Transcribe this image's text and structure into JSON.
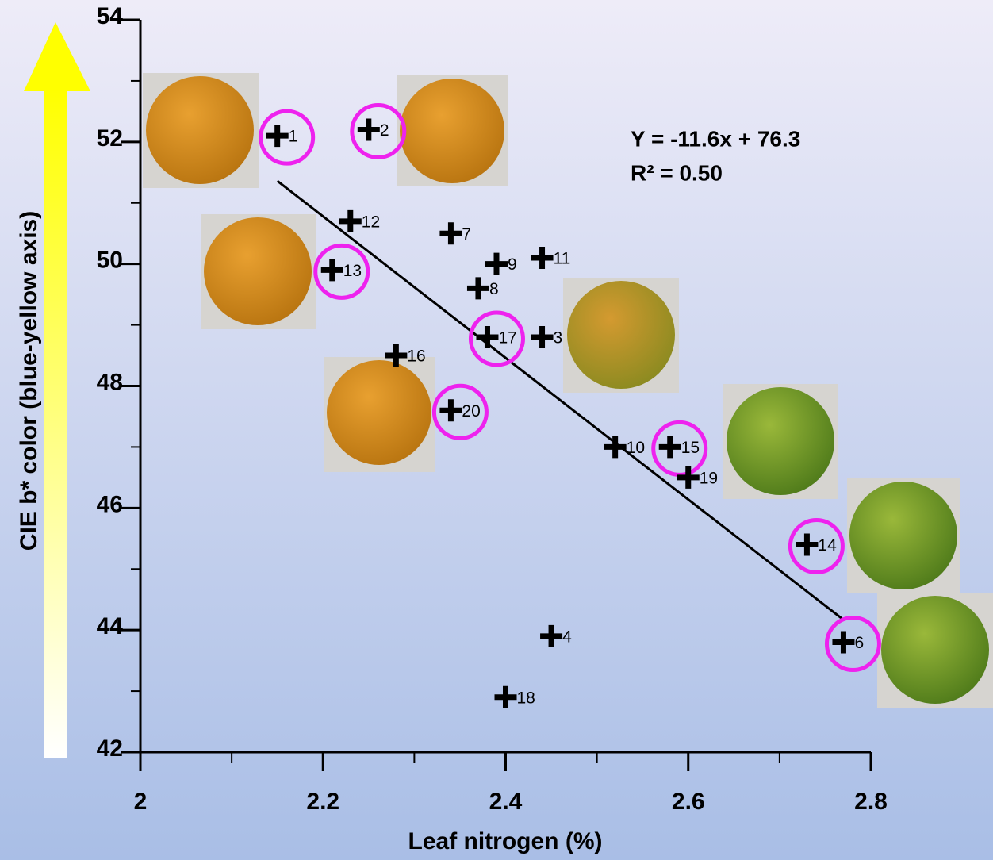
{
  "chart_data": {
    "type": "scatter",
    "xlabel": "Leaf nitrogen (%)",
    "ylabel": "CIE b* color (blue-yellow axis)",
    "xlim": [
      2,
      2.8
    ],
    "xticks": [
      2,
      2.2,
      2.4,
      2.6,
      2.8
    ],
    "xminor": [
      2.1,
      2.3,
      2.5,
      2.7
    ],
    "ylim": [
      42,
      54
    ],
    "yticks": [
      42,
      44,
      46,
      48,
      50,
      52,
      54
    ],
    "yminor": [
      43,
      45,
      47,
      49,
      51,
      53
    ],
    "equation": "Y = -11.6x + 76.3",
    "r_squared": "R² = 0.50",
    "trendline": {
      "slope": -11.6,
      "intercept": 76.3,
      "x_start": 2.15,
      "x_end": 2.77,
      "color": "#000000"
    },
    "marker_color": "#000000",
    "circle_color": "#ee22ee",
    "labels": [
      "1",
      "2",
      "12",
      "7",
      "11",
      "13",
      "9",
      "8",
      "17",
      "3",
      "16",
      "20",
      "10",
      "15",
      "19",
      "14",
      "6",
      "4",
      "18"
    ],
    "x": [
      2.15,
      2.25,
      2.23,
      2.34,
      2.44,
      2.21,
      2.39,
      2.37,
      2.38,
      2.44,
      2.28,
      2.34,
      2.52,
      2.58,
      2.6,
      2.73,
      2.77,
      2.45,
      2.4
    ],
    "y": [
      52.1,
      52.2,
      50.7,
      50.5,
      50.1,
      49.9,
      50.0,
      49.6,
      48.8,
      48.8,
      48.5,
      47.6,
      47.0,
      47.0,
      46.5,
      45.4,
      43.8,
      43.9,
      42.9
    ],
    "circled": [
      true,
      true,
      false,
      false,
      false,
      true,
      false,
      false,
      true,
      false,
      false,
      true,
      false,
      true,
      false,
      true,
      true,
      false,
      false
    ]
  }
}
